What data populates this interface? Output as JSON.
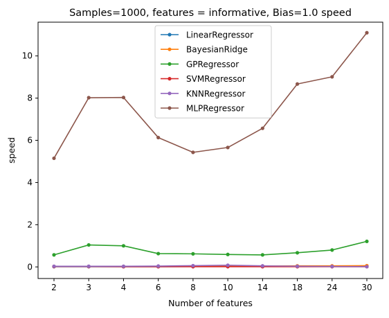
{
  "chart_data": {
    "type": "line",
    "title": "Samples=1000, features = informative, Bias=1.0 speed",
    "xlabel": "Number of features",
    "ylabel": "speed",
    "categories": [
      "2",
      "3",
      "4",
      "6",
      "8",
      "10",
      "14",
      "18",
      "24",
      "30"
    ],
    "ylim": [
      -0.55,
      11.6
    ],
    "yticks": [
      0,
      2,
      4,
      6,
      8,
      10
    ],
    "grid": false,
    "legend_position": "top-center",
    "series": [
      {
        "name": "LinearRegressor",
        "color": "#1f77b4",
        "values": [
          0.01,
          0.01,
          0.01,
          0.01,
          0.02,
          0.02,
          0.02,
          0.02,
          0.02,
          0.02
        ]
      },
      {
        "name": "BayesianRidge",
        "color": "#ff7f0e",
        "values": [
          0.02,
          0.02,
          0.02,
          0.03,
          0.03,
          0.04,
          0.04,
          0.05,
          0.05,
          0.06
        ]
      },
      {
        "name": "GPRegressor",
        "color": "#2ca02c",
        "values": [
          0.57,
          1.04,
          1.0,
          0.63,
          0.62,
          0.59,
          0.57,
          0.67,
          0.8,
          1.21
        ]
      },
      {
        "name": "SVMRegressor",
        "color": "#d62728",
        "values": [
          0.02,
          0.02,
          0.01,
          0.01,
          0.01,
          0.01,
          0.01,
          0.01,
          0.01,
          0.01
        ]
      },
      {
        "name": "KNNRegressor",
        "color": "#9467bd",
        "values": [
          0.03,
          0.03,
          0.03,
          0.04,
          0.06,
          0.08,
          0.05,
          0.03,
          0.02,
          0.01
        ]
      },
      {
        "name": "MLPRegressor",
        "color": "#8c564b",
        "values": [
          5.15,
          8.02,
          8.03,
          6.13,
          5.43,
          5.66,
          6.57,
          8.67,
          9.01,
          11.1
        ]
      }
    ]
  }
}
